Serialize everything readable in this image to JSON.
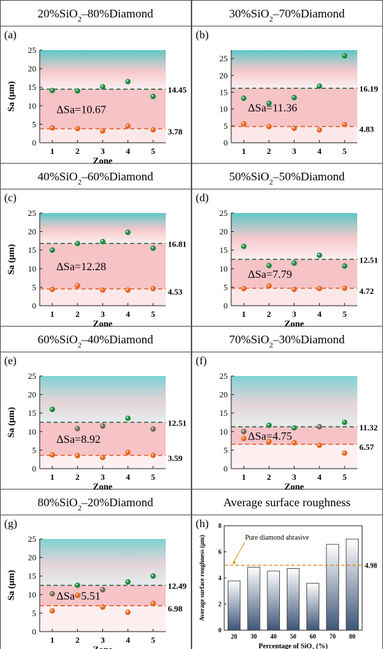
{
  "figure": {
    "panels_meta": [
      {
        "letter": "(a)",
        "title_parts": [
          "20%SiO",
          "2",
          "–80%Diamond"
        ]
      },
      {
        "letter": "(b)",
        "title_parts": [
          "30%SiO",
          "2",
          "–70%Diamond"
        ]
      },
      {
        "letter": "(c)",
        "title_parts": [
          "40%SiO",
          "2",
          "–60%Diamond"
        ]
      },
      {
        "letter": "(d)",
        "title_parts": [
          "50%SiO",
          "2",
          "–50%Diamond"
        ]
      },
      {
        "letter": "(e)",
        "title_parts": [
          "60%SiO",
          "2",
          "–40%Diamond"
        ]
      },
      {
        "letter": "(f)",
        "title_parts": [
          "70%SiO",
          "2",
          "–30%Diamond"
        ]
      },
      {
        "letter": "(g)",
        "title_parts": [
          "80%SiO",
          "2",
          "–20%Diamond"
        ]
      },
      {
        "letter": "(h)",
        "title_parts": [
          "Average surface roughness"
        ]
      }
    ],
    "colors": {
      "upper_points": "#1a8a3e",
      "lower_points": "#e8661e",
      "upper_line": "#1f5a37",
      "lower_line": "#e2561e",
      "band_top": "#3fbdbd",
      "band_mid": "#f3b8bc",
      "bar_top": "#ffffff",
      "bar_bottom": "#3d5578",
      "ref_line": "#d98a1c"
    }
  },
  "chart_data": [
    {
      "type": "scatter",
      "panel": "(a)",
      "ylabel": "Sa (μm)",
      "xlabel": "Zone",
      "x": [
        1,
        2,
        3,
        4,
        5
      ],
      "ylim": [
        0,
        25
      ],
      "yticks": [
        0,
        5,
        10,
        15,
        20,
        25
      ],
      "upper": [
        14.1,
        14.0,
        15.1,
        16.5,
        12.5
      ],
      "lower": [
        4.0,
        3.8,
        3.2,
        4.5,
        3.5
      ],
      "upper_mean": 14.45,
      "lower_mean": 3.78,
      "upper_label": "14.45",
      "lower_label": "3.78",
      "delta_label": "ΔSa=10.67"
    },
    {
      "type": "scatter",
      "panel": "(b)",
      "ylabel": "",
      "xlabel": "",
      "upper_colors": [
        "#1a8a3e",
        "#1a8a3e",
        "#1a8a3e",
        "#1a8a3e",
        "#1a8a3e"
      ],
      "x": [
        1,
        2,
        3,
        4,
        5
      ],
      "ylim": [
        0,
        27.5
      ],
      "yticks": [
        0,
        5,
        10,
        15,
        20,
        25
      ],
      "upper": [
        13.2,
        11.7,
        13.4,
        16.8,
        25.8
      ],
      "lower": [
        5.6,
        4.8,
        4.3,
        3.8,
        5.4
      ],
      "upper_mean": 16.19,
      "lower_mean": 4.83,
      "upper_label": "16.19",
      "lower_label": "4.83",
      "delta_label": "ΔSa=11.36"
    },
    {
      "type": "scatter",
      "panel": "(c)",
      "ylabel": "Sa (μm)",
      "xlabel": "Zone",
      "x": [
        1,
        2,
        3,
        4,
        5
      ],
      "ylim": [
        0,
        25
      ],
      "yticks": [
        0,
        5,
        10,
        15,
        20,
        25
      ],
      "upper": [
        15.0,
        16.8,
        17.3,
        19.8,
        15.5
      ],
      "lower": [
        4.4,
        5.4,
        4.2,
        4.2,
        4.6
      ],
      "upper_mean": 16.81,
      "lower_mean": 4.53,
      "upper_label": "16.81",
      "lower_label": "4.53",
      "delta_label": "ΔSa=12.28"
    },
    {
      "type": "scatter",
      "panel": "(d)",
      "ylabel": "",
      "xlabel": "Zone",
      "x": [
        1,
        2,
        3,
        4,
        5
      ],
      "ylim": [
        0,
        25
      ],
      "yticks": [
        0,
        5,
        10,
        15,
        20,
        25
      ],
      "upper": [
        16.0,
        10.8,
        11.5,
        13.6,
        10.7
      ],
      "lower": [
        4.6,
        5.3,
        4.4,
        4.6,
        4.7
      ],
      "upper_mean": 12.51,
      "lower_mean": 4.72,
      "upper_label": "12.51",
      "lower_label": "4.72",
      "delta_label": "ΔSa=7.79"
    },
    {
      "type": "scatter",
      "panel": "(e)",
      "ylabel": "Sa (μm)",
      "xlabel": "Zone",
      "x": [
        1,
        2,
        3,
        4,
        5
      ],
      "ylim": [
        0,
        25
      ],
      "yticks": [
        0,
        5,
        10,
        15,
        20,
        25
      ],
      "upper": [
        16.0,
        10.8,
        11.5,
        13.6,
        10.7
      ],
      "lower": [
        3.7,
        3.5,
        3.0,
        4.4,
        3.6
      ],
      "upper_colors": [
        "#1a8a3e",
        "#6f6a4e",
        "#6f6a4e",
        "#1a8a3e",
        "#6f6a4e"
      ],
      "upper_mean": 12.51,
      "lower_mean": 3.59,
      "upper_label": "12.51",
      "lower_label": "3.59",
      "delta_label": "ΔSa=8.92"
    },
    {
      "type": "scatter",
      "panel": "(f)",
      "ylabel": "",
      "xlabel": "Zone",
      "x": [
        1,
        2,
        3,
        4,
        5
      ],
      "ylim": [
        0,
        25
      ],
      "yticks": [
        0,
        5,
        10,
        15,
        20,
        25
      ],
      "upper": [
        10.0,
        11.7,
        11.0,
        11.3,
        12.5
      ],
      "lower": [
        8.1,
        7.3,
        7.0,
        6.3,
        4.2
      ],
      "upper_colors": [
        "#6f6a4e",
        "#1a8a3e",
        "#1a8a3e",
        "#6f6a4e",
        "#1a8a3e"
      ],
      "upper_mean": 11.32,
      "lower_mean": 6.57,
      "upper_label": "11.32",
      "lower_label": "6.57",
      "delta_label": "ΔSa=4.75"
    },
    {
      "type": "scatter",
      "panel": "(g)",
      "ylabel": "Sa (μm)",
      "xlabel": "Zone",
      "x": [
        1,
        2,
        3,
        4,
        5
      ],
      "ylim": [
        0,
        25
      ],
      "yticks": [
        0,
        5,
        10,
        15,
        20,
        25
      ],
      "upper": [
        10.2,
        12.5,
        11.3,
        13.4,
        15.0
      ],
      "lower": [
        5.6,
        9.8,
        6.6,
        5.2,
        7.6
      ],
      "upper_colors": [
        "#6f6a4e",
        "#1a8a3e",
        "#6f6a4e",
        "#1a8a3e",
        "#1a8a3e"
      ],
      "upper_mean": 12.49,
      "lower_mean": 6.98,
      "upper_label": "12.49",
      "lower_label": "6.98",
      "delta_label": "ΔSa=5.51"
    },
    {
      "type": "bar",
      "panel": "(h)",
      "categories": [
        "20",
        "30",
        "40",
        "50",
        "60",
        "70",
        "80"
      ],
      "values": [
        3.78,
        4.83,
        4.53,
        4.72,
        3.59,
        6.57,
        6.98
      ],
      "ylim": [
        0,
        8
      ],
      "yticks": [
        0,
        2,
        4,
        6,
        8
      ],
      "ylabel": "Average surface roughness (μm)",
      "xlabel_parts": [
        "Percentage of SiO",
        "2",
        " (%)"
      ],
      "ref_value": 4.98,
      "ref_label": "4.98",
      "ref_annotation": "Pure diamond abrasive"
    }
  ]
}
